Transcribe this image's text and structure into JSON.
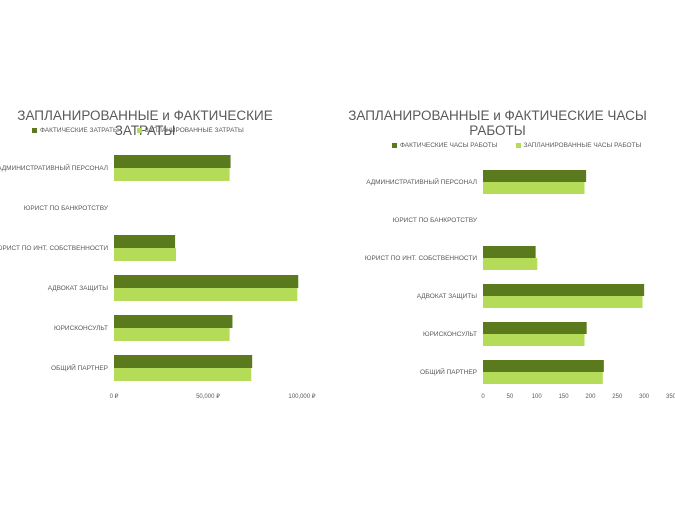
{
  "chart_data": [
    {
      "type": "bar",
      "orientation": "horizontal",
      "title": "ЗАПЛАНИРОВАННЫЕ и ФАКТИЧЕСКИЕ ЗАТРАТЫ",
      "categories": [
        "АДМИНИСТРАТИВНЫЙ ПЕРСОНАЛ",
        "ЮРИСТ ПО БАНКРОТСТВУ",
        "ЮРИСТ ПО ИНТ. СОБСТВЕННОСТИ",
        "АДВОКАТ ЗАЩИТЫ",
        "ЮРИСКОНСУЛЬТ",
        "ОБЩИЙ ПАРТНЕР"
      ],
      "series": [
        {
          "name": "ФАКТИЧЕСКИЕ ЗАТРАТЫ",
          "color": "#5b7a1e",
          "values": [
            62000,
            0,
            32500,
            98000,
            63000,
            73500
          ]
        },
        {
          "name": "ЗАПЛАНИРОВАННЫЕ ЗАТРАТЫ",
          "color": "#b5dc58",
          "values": [
            61500,
            0,
            33000,
            97500,
            61500,
            73000
          ]
        }
      ],
      "xlim": [
        0,
        100000
      ],
      "x_ticks": [
        0,
        50000,
        100000
      ],
      "x_tick_labels": [
        "0 ₽",
        "50,000 ₽",
        "100,000 ₽"
      ],
      "legend": "top",
      "grid": false
    },
    {
      "type": "bar",
      "orientation": "horizontal",
      "title": "ЗАПЛАНИРОВАННЫЕ и ФАКТИЧЕСКИЕ ЧАСЫ\nРАБОТЫ",
      "categories": [
        "АДМИНИСТРАТИВНЫЙ ПЕРСОНАЛ",
        "ЮРИСТ ПО БАНКРОТСТВУ",
        "ЮРИСТ ПО ИНТ. СОБСТВЕННОСТИ",
        "АДВОКАТ ЗАЩИТЫ",
        "ЮРИСКОНСУЛЬТ",
        "ОБЩИЙ ПАРТНЕР"
      ],
      "series": [
        {
          "name": "ФАКТИЧЕСКИЕ ЧАСЫ РАБОТЫ",
          "color": "#5b7a1e",
          "values": [
            192,
            0,
            98,
            300,
            193,
            225
          ]
        },
        {
          "name": "ЗАПЛАНИРОВАННЫЕ ЧАСЫ РАБОТЫ",
          "color": "#b5dc58",
          "values": [
            189,
            0,
            101,
            297,
            189,
            223
          ]
        }
      ],
      "xlim": [
        0,
        350
      ],
      "x_ticks": [
        0,
        50,
        100,
        150,
        200,
        250,
        300,
        350
      ],
      "x_tick_labels": [
        "0",
        "50",
        "100",
        "150",
        "200",
        "250",
        "300",
        "350"
      ],
      "legend": "top",
      "grid": false
    }
  ]
}
